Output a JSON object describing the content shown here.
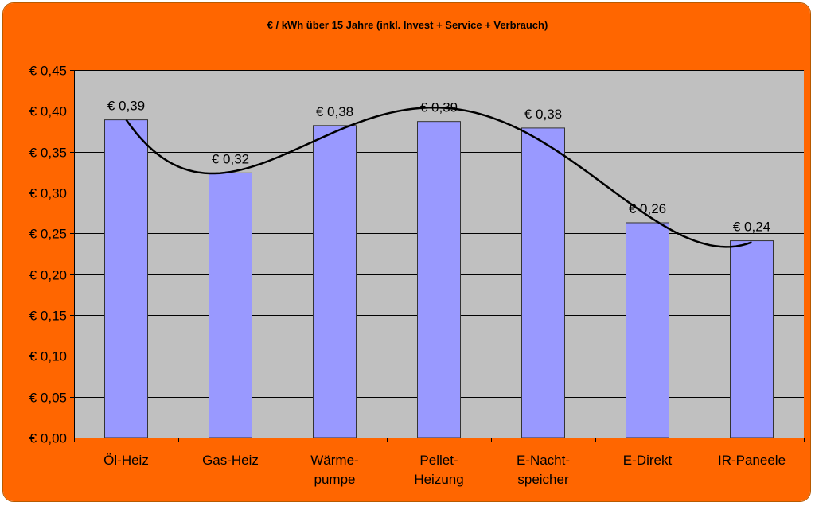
{
  "chart_data": {
    "type": "bar",
    "title": "€ / kWh über 15 Jahre (inkl. Invest + Service + Verbrauch)",
    "xlabel": "",
    "ylabel": "",
    "categories": [
      [
        "Öl-Heiz"
      ],
      [
        "Gas-Heiz"
      ],
      [
        "Wärme-",
        "pumpe"
      ],
      [
        "Pellet-",
        "Heizung"
      ],
      [
        "E-Nacht-",
        "speicher"
      ],
      [
        "E-Direkt"
      ],
      [
        "IR-Paneele"
      ]
    ],
    "values": [
      0.39,
      0.32,
      0.38,
      0.39,
      0.38,
      0.26,
      0.24
    ],
    "bar_heights": [
      0.389,
      0.324,
      0.382,
      0.387,
      0.379,
      0.263,
      0.241
    ],
    "data_labels": [
      "€ 0,39",
      "€ 0,32",
      "€ 0,38",
      "€ 0,39",
      "€ 0,38",
      "€ 0,26",
      "€ 0,24"
    ],
    "ylim": [
      0,
      0.45
    ],
    "yticks": [
      0,
      0.05,
      0.1,
      0.15,
      0.2,
      0.25,
      0.3,
      0.35,
      0.4,
      0.45
    ],
    "ytick_labels": [
      "€ 0,00",
      "€ 0,05",
      "€ 0,10",
      "€ 0,15",
      "€ 0,20",
      "€ 0,25",
      "€ 0,30",
      "€ 0,35",
      "€ 0,40",
      "€ 0,45"
    ],
    "grid": true,
    "legend": "none",
    "trendline": "polynomial",
    "colors": {
      "frame": "#ff6600",
      "plot_background": "#c0c0c0",
      "bar_fill": "#9999ff",
      "bar_stroke": "#333333",
      "gridline": "#000000",
      "trendline": "#000000"
    }
  }
}
